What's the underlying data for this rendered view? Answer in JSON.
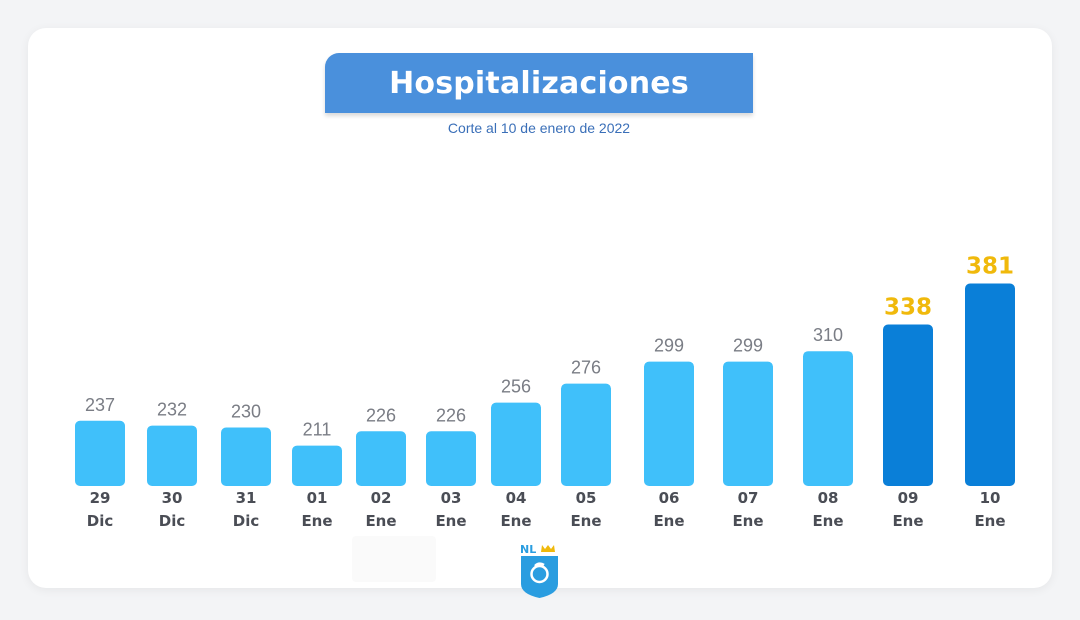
{
  "chart_data": {
    "type": "bar",
    "title": "Hospitalizaciones",
    "subtitle": "Corte al 10 de enero de 2022",
    "categories": [
      [
        "29",
        "Dic"
      ],
      [
        "30",
        "Dic"
      ],
      [
        "31",
        "Dic"
      ],
      [
        "01",
        "Ene"
      ],
      [
        "02",
        "Ene"
      ],
      [
        "03",
        "Ene"
      ],
      [
        "04",
        "Ene"
      ],
      [
        "05",
        "Ene"
      ],
      [
        "06",
        "Ene"
      ],
      [
        "07",
        "Ene"
      ],
      [
        "08",
        "Ene"
      ],
      [
        "09",
        "Ene"
      ],
      [
        "10",
        "Ene"
      ]
    ],
    "values": [
      237,
      232,
      230,
      211,
      226,
      226,
      256,
      276,
      299,
      299,
      310,
      338,
      381
    ],
    "highlighted": [
      false,
      false,
      false,
      false,
      false,
      false,
      false,
      false,
      false,
      false,
      false,
      true,
      true
    ],
    "xlabel": "",
    "ylabel": "",
    "grid": false,
    "colors": {
      "bar": "#40c0fa",
      "bar_highlight": "#0a7fd8",
      "label": "#7a7d85",
      "label_highlight": "#f0b90b",
      "title_bg": "#4a90dc"
    }
  },
  "logo": {
    "text": "NL",
    "icon": "shield-logo-icon"
  }
}
